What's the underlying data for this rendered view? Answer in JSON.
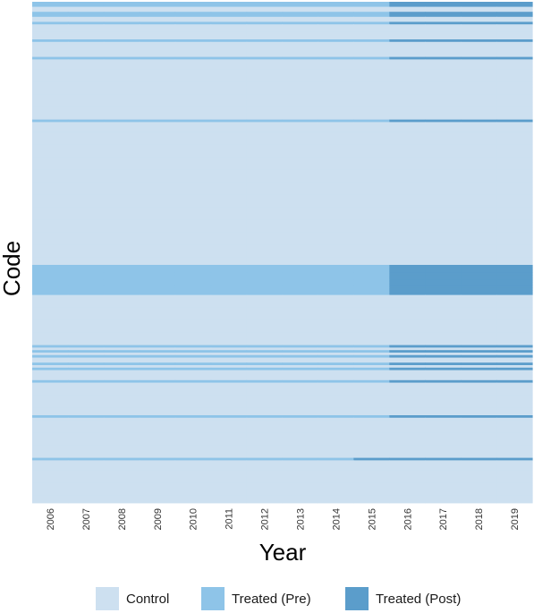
{
  "chart_data": {
    "type": "heatmap",
    "xlabel": "Year",
    "ylabel": "Code",
    "x": [
      "2006",
      "2007",
      "2008",
      "2009",
      "2010",
      "2011",
      "2012",
      "2013",
      "2014",
      "2015",
      "2016",
      "2017",
      "2018",
      "2019"
    ],
    "categories": [
      "Control",
      "Treated (Pre)",
      "Treated (Post)"
    ],
    "colors": {
      "Control": "#cde0f0",
      "Treated (Pre)": "#8ec4e8",
      "Treated (Post)": "#5b9dcb"
    },
    "grid": false,
    "legend_position": "bottom",
    "unit_count": 200,
    "treated_units": [
      {
        "rows": [
          0,
          1
        ],
        "treat_start": "2016"
      },
      {
        "rows": [
          4,
          5
        ],
        "treat_start": "2016"
      },
      {
        "rows": [
          8
        ],
        "treat_start": "2016"
      },
      {
        "rows": [
          15
        ],
        "treat_start": "2016"
      },
      {
        "rows": [
          22
        ],
        "treat_start": "2016"
      },
      {
        "rows": [
          47
        ],
        "treat_start": "2016"
      },
      {
        "rows": [
          105,
          106,
          107,
          108,
          109,
          110,
          111,
          112,
          113,
          114,
          115,
          116
        ],
        "treat_start": "2016"
      },
      {
        "rows": [
          137
        ],
        "treat_start": "2016"
      },
      {
        "rows": [
          139
        ],
        "treat_start": "2016"
      },
      {
        "rows": [
          141
        ],
        "treat_start": "2016"
      },
      {
        "rows": [
          144
        ],
        "treat_start": "2016"
      },
      {
        "rows": [
          146
        ],
        "treat_start": "2016"
      },
      {
        "rows": [
          151
        ],
        "treat_start": "2016"
      },
      {
        "rows": [
          165
        ],
        "treat_start": "2016"
      },
      {
        "rows": [
          182
        ],
        "treat_start": "2015"
      }
    ]
  },
  "legend": {
    "items": [
      {
        "label": "Control",
        "color": "#cde0f0"
      },
      {
        "label": "Treated (Pre)",
        "color": "#8ec4e8"
      },
      {
        "label": "Treated (Post)",
        "color": "#5b9dcb"
      }
    ]
  }
}
